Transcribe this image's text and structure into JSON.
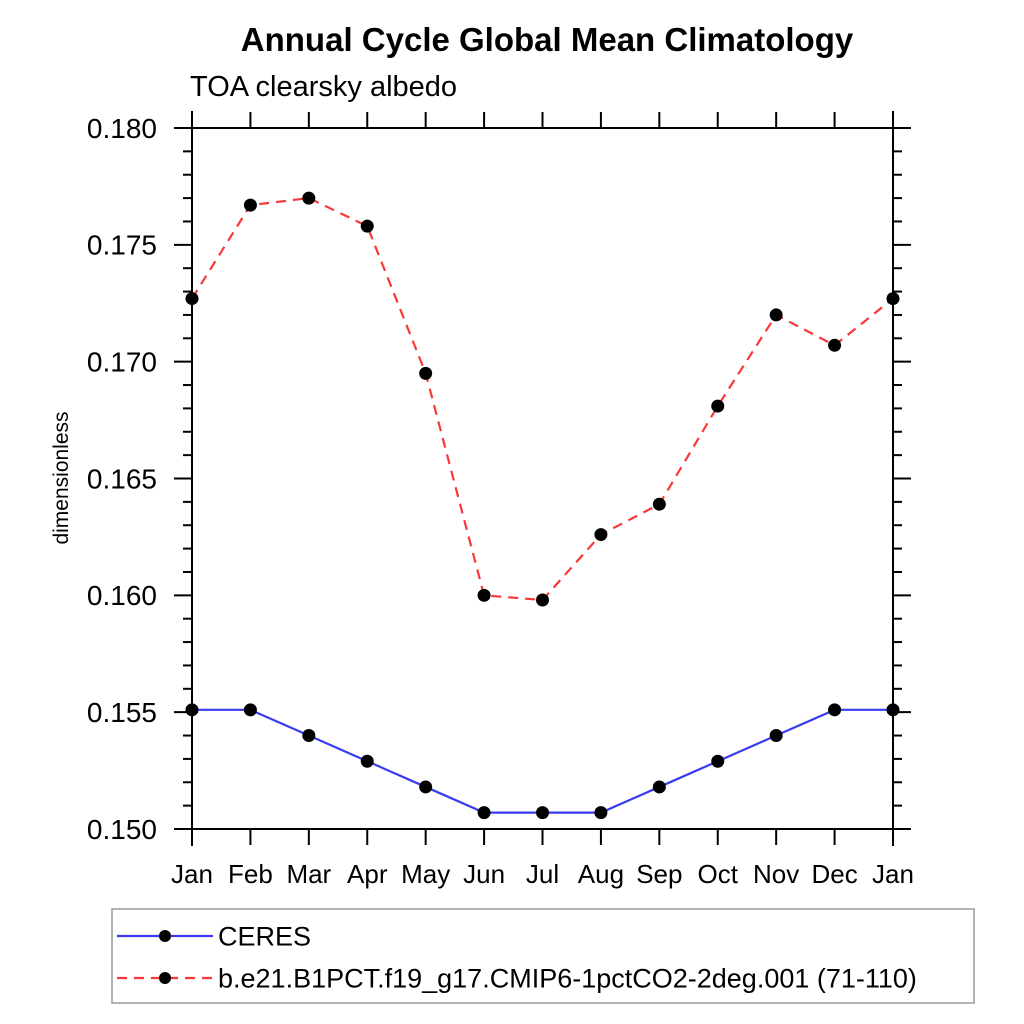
{
  "chart_data": {
    "type": "line",
    "title": "Annual Cycle Global Mean Climatology",
    "subtitle": "TOA clearsky albedo",
    "xlabel": "",
    "ylabel": "dimensionless",
    "categories": [
      "Jan",
      "Feb",
      "Mar",
      "Apr",
      "May",
      "Jun",
      "Jul",
      "Aug",
      "Sep",
      "Oct",
      "Nov",
      "Dec",
      "Jan"
    ],
    "ylim": [
      0.15,
      0.18
    ],
    "ytick_major_step": 0.005,
    "ytick_minor_step": 0.001,
    "ytick_labels": [
      "0.150",
      "0.155",
      "0.160",
      "0.165",
      "0.170",
      "0.175",
      "0.180"
    ],
    "grid": false,
    "legend_position": "bottom-left",
    "axis_color": "#000000",
    "series": [
      {
        "name": "CERES",
        "color": "#3a3af0",
        "line_style": "solid",
        "marker": "filled-circle",
        "marker_color": "#000000",
        "values": [
          0.1551,
          0.1551,
          0.154,
          0.1529,
          0.1518,
          0.1507,
          0.1507,
          0.1507,
          0.1518,
          0.1529,
          0.154,
          0.1551,
          0.1551
        ]
      },
      {
        "name": "b.e21.B1PCT.f19_g17.CMIP6-1pctCO2-2deg.001 (71-110)",
        "color": "#f83838",
        "line_style": "dashed",
        "marker": "filled-circle",
        "marker_color": "#000000",
        "values": [
          0.1727,
          0.1767,
          0.177,
          0.1758,
          0.1695,
          0.16,
          0.1598,
          0.1626,
          0.1639,
          0.1681,
          0.172,
          0.1707,
          0.1727
        ]
      }
    ]
  }
}
